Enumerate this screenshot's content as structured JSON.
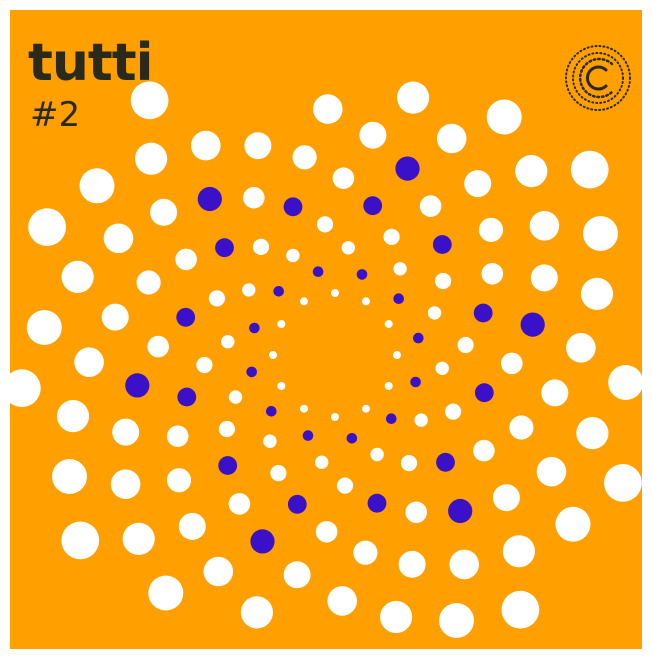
{
  "title": "tutti",
  "subtitle": "#2"
}
